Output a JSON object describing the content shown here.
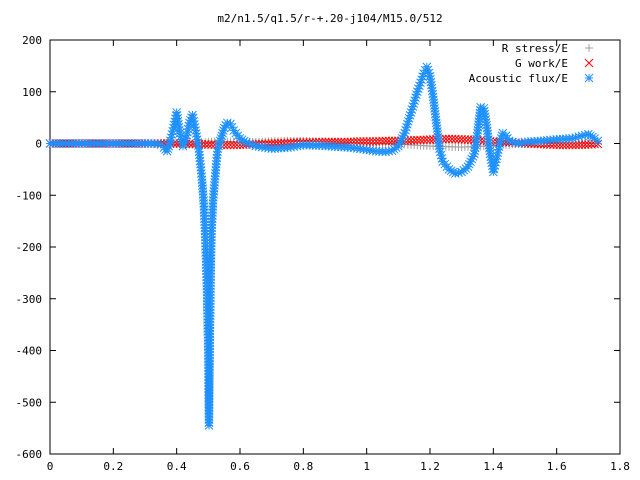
{
  "chart_data": {
    "type": "scatter",
    "title": "m2/n1.5/q1.5/r-+.20-j104/M15.0/512",
    "xlabel": "",
    "ylabel": "",
    "xlim": [
      0,
      1.8
    ],
    "ylim": [
      -600,
      200
    ],
    "x_ticks": [
      0,
      0.2,
      0.4,
      0.6,
      0.8,
      1,
      1.2,
      1.4,
      1.6,
      1.8
    ],
    "x_tick_labels": [
      "0",
      "0.2",
      "0.4",
      "0.6",
      "0.8",
      "1",
      "1.2",
      "1.4",
      "1.6",
      "1.8"
    ],
    "y_ticks": [
      200,
      100,
      0,
      -100,
      -200,
      -300,
      -400,
      -500,
      -600
    ],
    "y_tick_labels": [
      "200",
      "100",
      "0",
      "-100",
      "-200",
      "-300",
      "-400",
      "-500",
      "-600"
    ],
    "grid": false,
    "legend_position": "top-right",
    "series": [
      {
        "name": "R stress/E",
        "marker": "plus",
        "color": "#a0a0a0",
        "points": [
          [
            0.0,
            0
          ],
          [
            0.1,
            0
          ],
          [
            0.2,
            0
          ],
          [
            0.3,
            0
          ],
          [
            0.35,
            0
          ],
          [
            0.4,
            -1
          ],
          [
            0.42,
            -2
          ],
          [
            0.45,
            -2
          ],
          [
            0.48,
            1
          ],
          [
            0.5,
            3
          ],
          [
            0.52,
            4
          ],
          [
            0.55,
            4
          ],
          [
            0.6,
            3
          ],
          [
            0.65,
            3
          ],
          [
            0.7,
            4
          ],
          [
            0.75,
            5
          ],
          [
            0.8,
            5
          ],
          [
            0.85,
            4
          ],
          [
            0.9,
            3
          ],
          [
            0.95,
            2
          ],
          [
            1.0,
            1
          ],
          [
            1.05,
            0
          ],
          [
            1.1,
            -1
          ],
          [
            1.15,
            -3
          ],
          [
            1.2,
            -5
          ],
          [
            1.25,
            -6
          ],
          [
            1.3,
            -7
          ],
          [
            1.35,
            -6
          ],
          [
            1.4,
            -4
          ],
          [
            1.45,
            -2
          ],
          [
            1.5,
            0
          ],
          [
            1.55,
            1
          ],
          [
            1.6,
            2
          ],
          [
            1.65,
            1
          ],
          [
            1.7,
            0
          ],
          [
            1.73,
            0
          ]
        ]
      },
      {
        "name": "G work/E",
        "marker": "cross",
        "color": "#ff0000",
        "points": [
          [
            0.0,
            0
          ],
          [
            0.1,
            0
          ],
          [
            0.2,
            0
          ],
          [
            0.3,
            0
          ],
          [
            0.38,
            0
          ],
          [
            0.42,
            0
          ],
          [
            0.46,
            -1
          ],
          [
            0.5,
            -2
          ],
          [
            0.54,
            -3
          ],
          [
            0.58,
            -3
          ],
          [
            0.62,
            -2
          ],
          [
            0.66,
            -1
          ],
          [
            0.7,
            0
          ],
          [
            0.74,
            1
          ],
          [
            0.78,
            2
          ],
          [
            0.82,
            2
          ],
          [
            0.86,
            3
          ],
          [
            0.9,
            3
          ],
          [
            0.94,
            3
          ],
          [
            0.98,
            4
          ],
          [
            1.02,
            4
          ],
          [
            1.06,
            5
          ],
          [
            1.1,
            5
          ],
          [
            1.14,
            6
          ],
          [
            1.18,
            7
          ],
          [
            1.22,
            8
          ],
          [
            1.26,
            9
          ],
          [
            1.3,
            8
          ],
          [
            1.34,
            7
          ],
          [
            1.38,
            5
          ],
          [
            1.42,
            3
          ],
          [
            1.46,
            2
          ],
          [
            1.5,
            0
          ],
          [
            1.54,
            -1
          ],
          [
            1.58,
            -2
          ],
          [
            1.62,
            -3
          ],
          [
            1.66,
            -3
          ],
          [
            1.7,
            -2
          ],
          [
            1.73,
            -1
          ]
        ]
      },
      {
        "name": "Acoustic flux/E",
        "marker": "star",
        "color": "#1e90ff",
        "points": [
          [
            0.0,
            0
          ],
          [
            0.05,
            0
          ],
          [
            0.1,
            0
          ],
          [
            0.15,
            0
          ],
          [
            0.2,
            0
          ],
          [
            0.25,
            0
          ],
          [
            0.3,
            0
          ],
          [
            0.33,
            0
          ],
          [
            0.35,
            -2
          ],
          [
            0.36,
            -8
          ],
          [
            0.37,
            -15
          ],
          [
            0.38,
            5
          ],
          [
            0.39,
            30
          ],
          [
            0.4,
            60
          ],
          [
            0.41,
            20
          ],
          [
            0.42,
            -5
          ],
          [
            0.43,
            10
          ],
          [
            0.44,
            40
          ],
          [
            0.45,
            55
          ],
          [
            0.46,
            25
          ],
          [
            0.47,
            -10
          ],
          [
            0.475,
            -40
          ],
          [
            0.48,
            -70
          ],
          [
            0.485,
            -110
          ],
          [
            0.49,
            -175
          ],
          [
            0.495,
            -270
          ],
          [
            0.5,
            -410
          ],
          [
            0.502,
            -545
          ],
          [
            0.504,
            -420
          ],
          [
            0.507,
            -275
          ],
          [
            0.51,
            -175
          ],
          [
            0.515,
            -110
          ],
          [
            0.52,
            -75
          ],
          [
            0.525,
            -40
          ],
          [
            0.53,
            -10
          ],
          [
            0.54,
            10
          ],
          [
            0.55,
            30
          ],
          [
            0.56,
            40
          ],
          [
            0.57,
            38
          ],
          [
            0.58,
            25
          ],
          [
            0.6,
            10
          ],
          [
            0.62,
            2
          ],
          [
            0.65,
            -5
          ],
          [
            0.7,
            -10
          ],
          [
            0.75,
            -8
          ],
          [
            0.8,
            -3
          ],
          [
            0.85,
            -4
          ],
          [
            0.9,
            -6
          ],
          [
            0.95,
            -8
          ],
          [
            1.0,
            -12
          ],
          [
            1.03,
            -15
          ],
          [
            1.06,
            -16
          ],
          [
            1.08,
            -14
          ],
          [
            1.1,
            -5
          ],
          [
            1.12,
            20
          ],
          [
            1.14,
            60
          ],
          [
            1.16,
            100
          ],
          [
            1.18,
            135
          ],
          [
            1.19,
            148
          ],
          [
            1.2,
            130
          ],
          [
            1.21,
            90
          ],
          [
            1.22,
            40
          ],
          [
            1.23,
            -10
          ],
          [
            1.24,
            -35
          ],
          [
            1.26,
            -50
          ],
          [
            1.28,
            -58
          ],
          [
            1.3,
            -55
          ],
          [
            1.32,
            -45
          ],
          [
            1.34,
            -20
          ],
          [
            1.35,
            20
          ],
          [
            1.36,
            70
          ],
          [
            1.37,
            68
          ],
          [
            1.38,
            30
          ],
          [
            1.39,
            -20
          ],
          [
            1.4,
            -55
          ],
          [
            1.41,
            -30
          ],
          [
            1.42,
            0
          ],
          [
            1.43,
            20
          ],
          [
            1.44,
            15
          ],
          [
            1.45,
            5
          ],
          [
            1.48,
            0
          ],
          [
            1.5,
            3
          ],
          [
            1.55,
            5
          ],
          [
            1.6,
            8
          ],
          [
            1.65,
            10
          ],
          [
            1.68,
            15
          ],
          [
            1.7,
            18
          ],
          [
            1.72,
            10
          ],
          [
            1.73,
            5
          ]
        ]
      }
    ]
  }
}
